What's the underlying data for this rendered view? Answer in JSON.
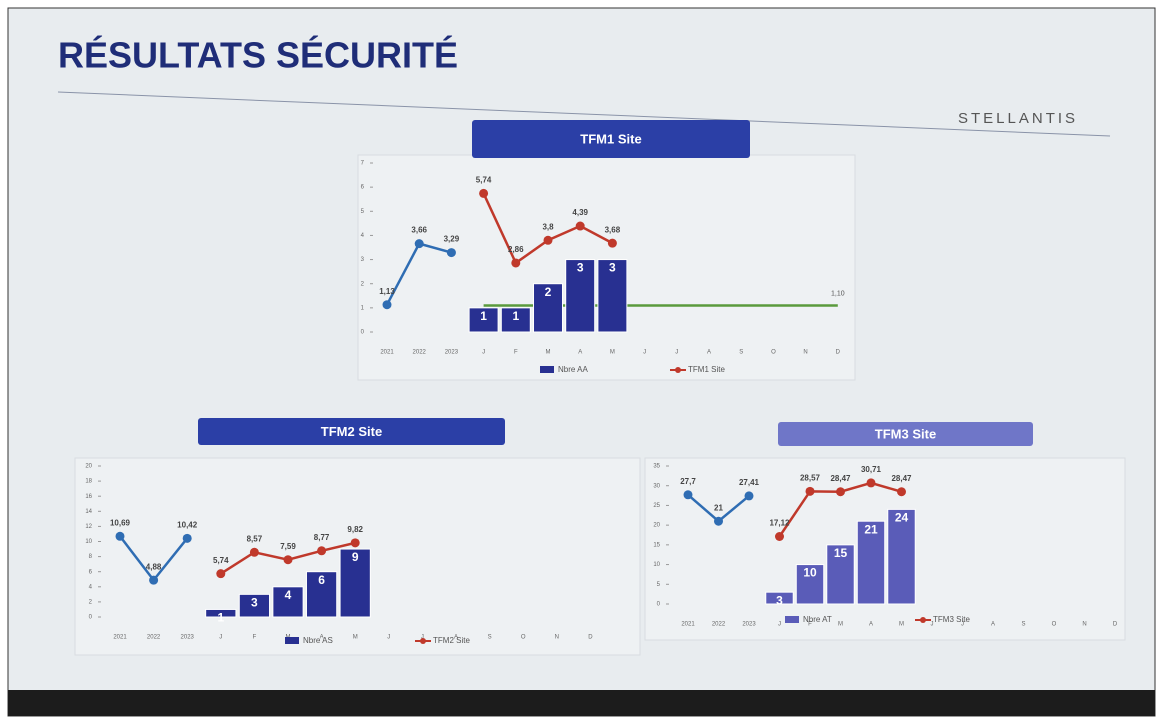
{
  "header": {
    "title": "RÉSULTATS SÉCURITÉ",
    "logo": "STELLANTIS"
  },
  "chart_data": [
    {
      "type": "bar",
      "title": "TFM1 Site",
      "categories": [
        "2021",
        "2022",
        "2023",
        "J",
        "F",
        "M",
        "A",
        "M",
        "J",
        "J",
        "A",
        "S",
        "O",
        "N",
        "D"
      ],
      "ylim": [
        0,
        7
      ],
      "yticks": [
        0,
        1,
        2,
        3,
        4,
        5,
        6,
        7
      ],
      "banner_color": "#2b3fa6",
      "series": [
        {
          "name": "Nbre AA",
          "type": "bar",
          "color": "#283091",
          "values": [
            null,
            null,
            null,
            1,
            1,
            2,
            3,
            3,
            null,
            null,
            null,
            null,
            null,
            null,
            null
          ]
        },
        {
          "name": "TFM1 Site",
          "type": "line",
          "color": "#c0392b",
          "values": [
            null,
            null,
            null,
            5.74,
            2.86,
            3.8,
            4.39,
            3.68,
            null,
            null,
            null,
            null,
            null,
            null,
            null
          ],
          "value_labels": [
            null,
            null,
            null,
            "5,74",
            "2,86",
            "3,8",
            "4,39",
            "3,68",
            null,
            null,
            null,
            null,
            null,
            null,
            null
          ]
        },
        {
          "type": "line",
          "color": "#2f6db3",
          "values": [
            1.13,
            3.66,
            3.29,
            null,
            null,
            null,
            null,
            null,
            null,
            null,
            null,
            null,
            null,
            null,
            null
          ],
          "value_labels": [
            "1,13",
            "3,66",
            "3,29",
            null,
            null,
            null,
            null,
            null,
            null,
            null,
            null,
            null,
            null,
            null,
            null
          ]
        }
      ],
      "target": {
        "value": 1.1,
        "label": "1,10",
        "color": "#5a9a3c"
      }
    },
    {
      "type": "bar",
      "title": "TFM2 Site",
      "categories": [
        "2021",
        "2022",
        "2023",
        "J",
        "F",
        "M",
        "A",
        "M",
        "J",
        "J",
        "A",
        "S",
        "O",
        "N",
        "D"
      ],
      "ylim": [
        0,
        20
      ],
      "yticks": [
        0,
        2,
        4,
        6,
        8,
        10,
        12,
        14,
        16,
        18,
        20
      ],
      "banner_color": "#2b3fa6",
      "series": [
        {
          "name": "Nbre AS",
          "type": "bar",
          "color": "#283091",
          "values": [
            null,
            null,
            null,
            1,
            3,
            4,
            6,
            9,
            null,
            null,
            null,
            null,
            null,
            null,
            null
          ]
        },
        {
          "name": "TFM2 Site",
          "type": "line",
          "color": "#c0392b",
          "values": [
            null,
            null,
            null,
            5.74,
            8.57,
            7.59,
            8.77,
            9.82,
            null,
            null,
            null,
            null,
            null,
            null,
            null
          ],
          "value_labels": [
            null,
            null,
            null,
            "5,74",
            "8,57",
            "7,59",
            "8,77",
            "9,82",
            null,
            null,
            null,
            null,
            null,
            null,
            null
          ]
        },
        {
          "type": "line",
          "color": "#2f6db3",
          "values": [
            10.69,
            4.88,
            10.42,
            null,
            null,
            null,
            null,
            null,
            null,
            null,
            null,
            null,
            null,
            null,
            null
          ],
          "value_labels": [
            "10,69",
            "4,88",
            "10,42",
            null,
            null,
            null,
            null,
            null,
            null,
            null,
            null,
            null,
            null,
            null,
            null
          ]
        }
      ]
    },
    {
      "type": "bar",
      "title": "TFM3 Site",
      "categories": [
        "2021",
        "2022",
        "2023",
        "J",
        "F",
        "M",
        "A",
        "M",
        "J",
        "J",
        "A",
        "S",
        "O",
        "N",
        "D"
      ],
      "ylim": [
        0,
        35
      ],
      "yticks": [
        0,
        5,
        10,
        15,
        20,
        25,
        30,
        35
      ],
      "banner_color": "#6f76c8",
      "series": [
        {
          "name": "Nbre AT",
          "type": "bar",
          "color": "#5a5cb8",
          "values": [
            null,
            null,
            null,
            3,
            10,
            15,
            21,
            24,
            null,
            null,
            null,
            null,
            null,
            null,
            null
          ]
        },
        {
          "name": "TFM3 Site",
          "type": "line",
          "color": "#c0392b",
          "values": [
            null,
            null,
            null,
            17.12,
            28.57,
            28.47,
            30.71,
            28.47,
            null,
            null,
            null,
            null,
            null,
            null,
            null
          ],
          "value_labels": [
            null,
            null,
            null,
            "17,12",
            "28,57",
            "28,47",
            "30,71",
            "28,47",
            null,
            null,
            null,
            null,
            null,
            null,
            null
          ]
        },
        {
          "type": "line",
          "color": "#2f6db3",
          "values": [
            27.7,
            21,
            27.41,
            null,
            null,
            null,
            null,
            null,
            null,
            null,
            null,
            null,
            null,
            null,
            null
          ],
          "value_labels": [
            "27,7",
            "21",
            "27,41",
            null,
            null,
            null,
            null,
            null,
            null,
            null,
            null,
            null,
            null,
            null,
            null
          ]
        }
      ]
    }
  ]
}
